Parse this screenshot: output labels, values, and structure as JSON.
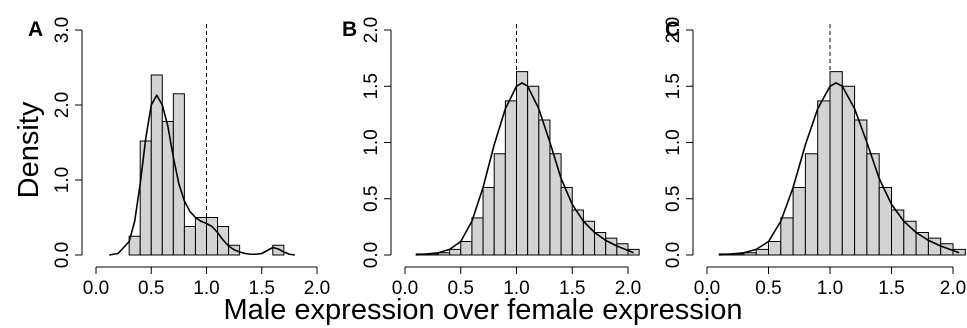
{
  "figure": {
    "ylabel": "Density",
    "xlabel": "Male expression over female expression"
  },
  "colors": {
    "bar_fill": "#d3d3d3",
    "bar_stroke": "#000000",
    "density_line": "#000000",
    "reference_line": "#000000"
  },
  "chart_data": [
    {
      "type": "bar",
      "panel": "A",
      "title": "",
      "xlim": [
        0,
        2
      ],
      "ylim": [
        0,
        3
      ],
      "xticks": [
        "0.0",
        "0.5",
        "1.0",
        "1.5",
        "2.0"
      ],
      "yticks": [
        "0.0",
        "1.0",
        "2.0",
        "3.0"
      ],
      "bin_width": 0.1,
      "bins_start": [
        0.3,
        0.4,
        0.5,
        0.6,
        0.7,
        0.8,
        0.9,
        1.0,
        1.1,
        1.2,
        1.3,
        1.4,
        1.5,
        1.6
      ],
      "values": [
        0.25,
        1.52,
        2.4,
        1.78,
        2.15,
        0.38,
        0.5,
        0.5,
        0.38,
        0.13,
        0,
        0,
        0,
        0.13
      ],
      "density_curve": {
        "x": [
          0.12,
          0.2,
          0.3,
          0.35,
          0.4,
          0.45,
          0.5,
          0.55,
          0.6,
          0.65,
          0.7,
          0.75,
          0.8,
          0.85,
          0.9,
          0.95,
          1.0,
          1.05,
          1.1,
          1.15,
          1.2,
          1.25,
          1.3,
          1.35,
          1.4,
          1.45,
          1.5,
          1.55,
          1.6,
          1.65,
          1.7,
          1.75,
          1.8
        ],
        "y": [
          0.0,
          0.02,
          0.18,
          0.45,
          0.95,
          1.55,
          2.0,
          2.13,
          2.0,
          1.72,
          1.3,
          0.95,
          0.72,
          0.58,
          0.5,
          0.45,
          0.42,
          0.38,
          0.3,
          0.2,
          0.12,
          0.07,
          0.04,
          0.02,
          0.01,
          0.01,
          0.02,
          0.06,
          0.1,
          0.08,
          0.04,
          0.01,
          0.0
        ]
      },
      "reference_x": 1.0
    },
    {
      "type": "bar",
      "panel": "B",
      "title": "",
      "xlim": [
        0,
        2
      ],
      "ylim": [
        0,
        2
      ],
      "xticks": [
        "0.0",
        "0.5",
        "1.0",
        "1.5",
        "2.0"
      ],
      "yticks": [
        "0.0",
        "0.5",
        "1.0",
        "1.5",
        "2.0"
      ],
      "bin_width": 0.1,
      "bins_start": [
        0.1,
        0.2,
        0.3,
        0.4,
        0.5,
        0.6,
        0.7,
        0.8,
        0.9,
        1.0,
        1.1,
        1.2,
        1.3,
        1.4,
        1.5,
        1.6,
        1.7,
        1.8,
        1.9,
        2.0
      ],
      "values": [
        0.01,
        0.01,
        0.02,
        0.05,
        0.12,
        0.33,
        0.6,
        0.9,
        1.37,
        1.63,
        1.5,
        1.2,
        0.9,
        0.6,
        0.4,
        0.3,
        0.2,
        0.15,
        0.1,
        0.05
      ],
      "density_curve": {
        "x": [
          0.1,
          0.2,
          0.3,
          0.4,
          0.5,
          0.6,
          0.7,
          0.8,
          0.9,
          1.0,
          1.05,
          1.1,
          1.2,
          1.3,
          1.4,
          1.5,
          1.6,
          1.7,
          1.8,
          1.9,
          2.0,
          2.05
        ],
        "y": [
          0.0,
          0.01,
          0.02,
          0.05,
          0.12,
          0.3,
          0.6,
          0.98,
          1.3,
          1.5,
          1.53,
          1.5,
          1.3,
          1.0,
          0.68,
          0.45,
          0.3,
          0.2,
          0.13,
          0.08,
          0.04,
          0.02
        ]
      },
      "reference_x": 1.0
    },
    {
      "type": "bar",
      "panel": "C",
      "title": "",
      "xlim": [
        0,
        2
      ],
      "ylim": [
        0,
        2
      ],
      "xticks": [
        "0.0",
        "0.5",
        "1.0",
        "1.5",
        "2.0"
      ],
      "yticks": [
        "0.0",
        "0.5",
        "1.0",
        "1.5",
        "2.0"
      ],
      "bin_width": 0.1,
      "bins_start": [
        0.1,
        0.2,
        0.3,
        0.4,
        0.5,
        0.6,
        0.7,
        0.8,
        0.9,
        1.0,
        1.1,
        1.2,
        1.3,
        1.4,
        1.5,
        1.6,
        1.7,
        1.8,
        1.9,
        2.0
      ],
      "values": [
        0.01,
        0.01,
        0.02,
        0.05,
        0.12,
        0.33,
        0.6,
        0.9,
        1.37,
        1.63,
        1.5,
        1.2,
        0.9,
        0.6,
        0.4,
        0.3,
        0.2,
        0.15,
        0.1,
        0.05
      ],
      "density_curve": {
        "x": [
          0.1,
          0.2,
          0.3,
          0.4,
          0.5,
          0.6,
          0.7,
          0.8,
          0.9,
          1.0,
          1.05,
          1.1,
          1.2,
          1.3,
          1.4,
          1.5,
          1.6,
          1.7,
          1.8,
          1.9,
          2.0,
          2.05
        ],
        "y": [
          0.0,
          0.01,
          0.02,
          0.05,
          0.12,
          0.3,
          0.6,
          0.98,
          1.3,
          1.5,
          1.53,
          1.5,
          1.3,
          1.0,
          0.68,
          0.45,
          0.3,
          0.2,
          0.13,
          0.08,
          0.04,
          0.02
        ]
      },
      "reference_x": 1.0
    }
  ]
}
